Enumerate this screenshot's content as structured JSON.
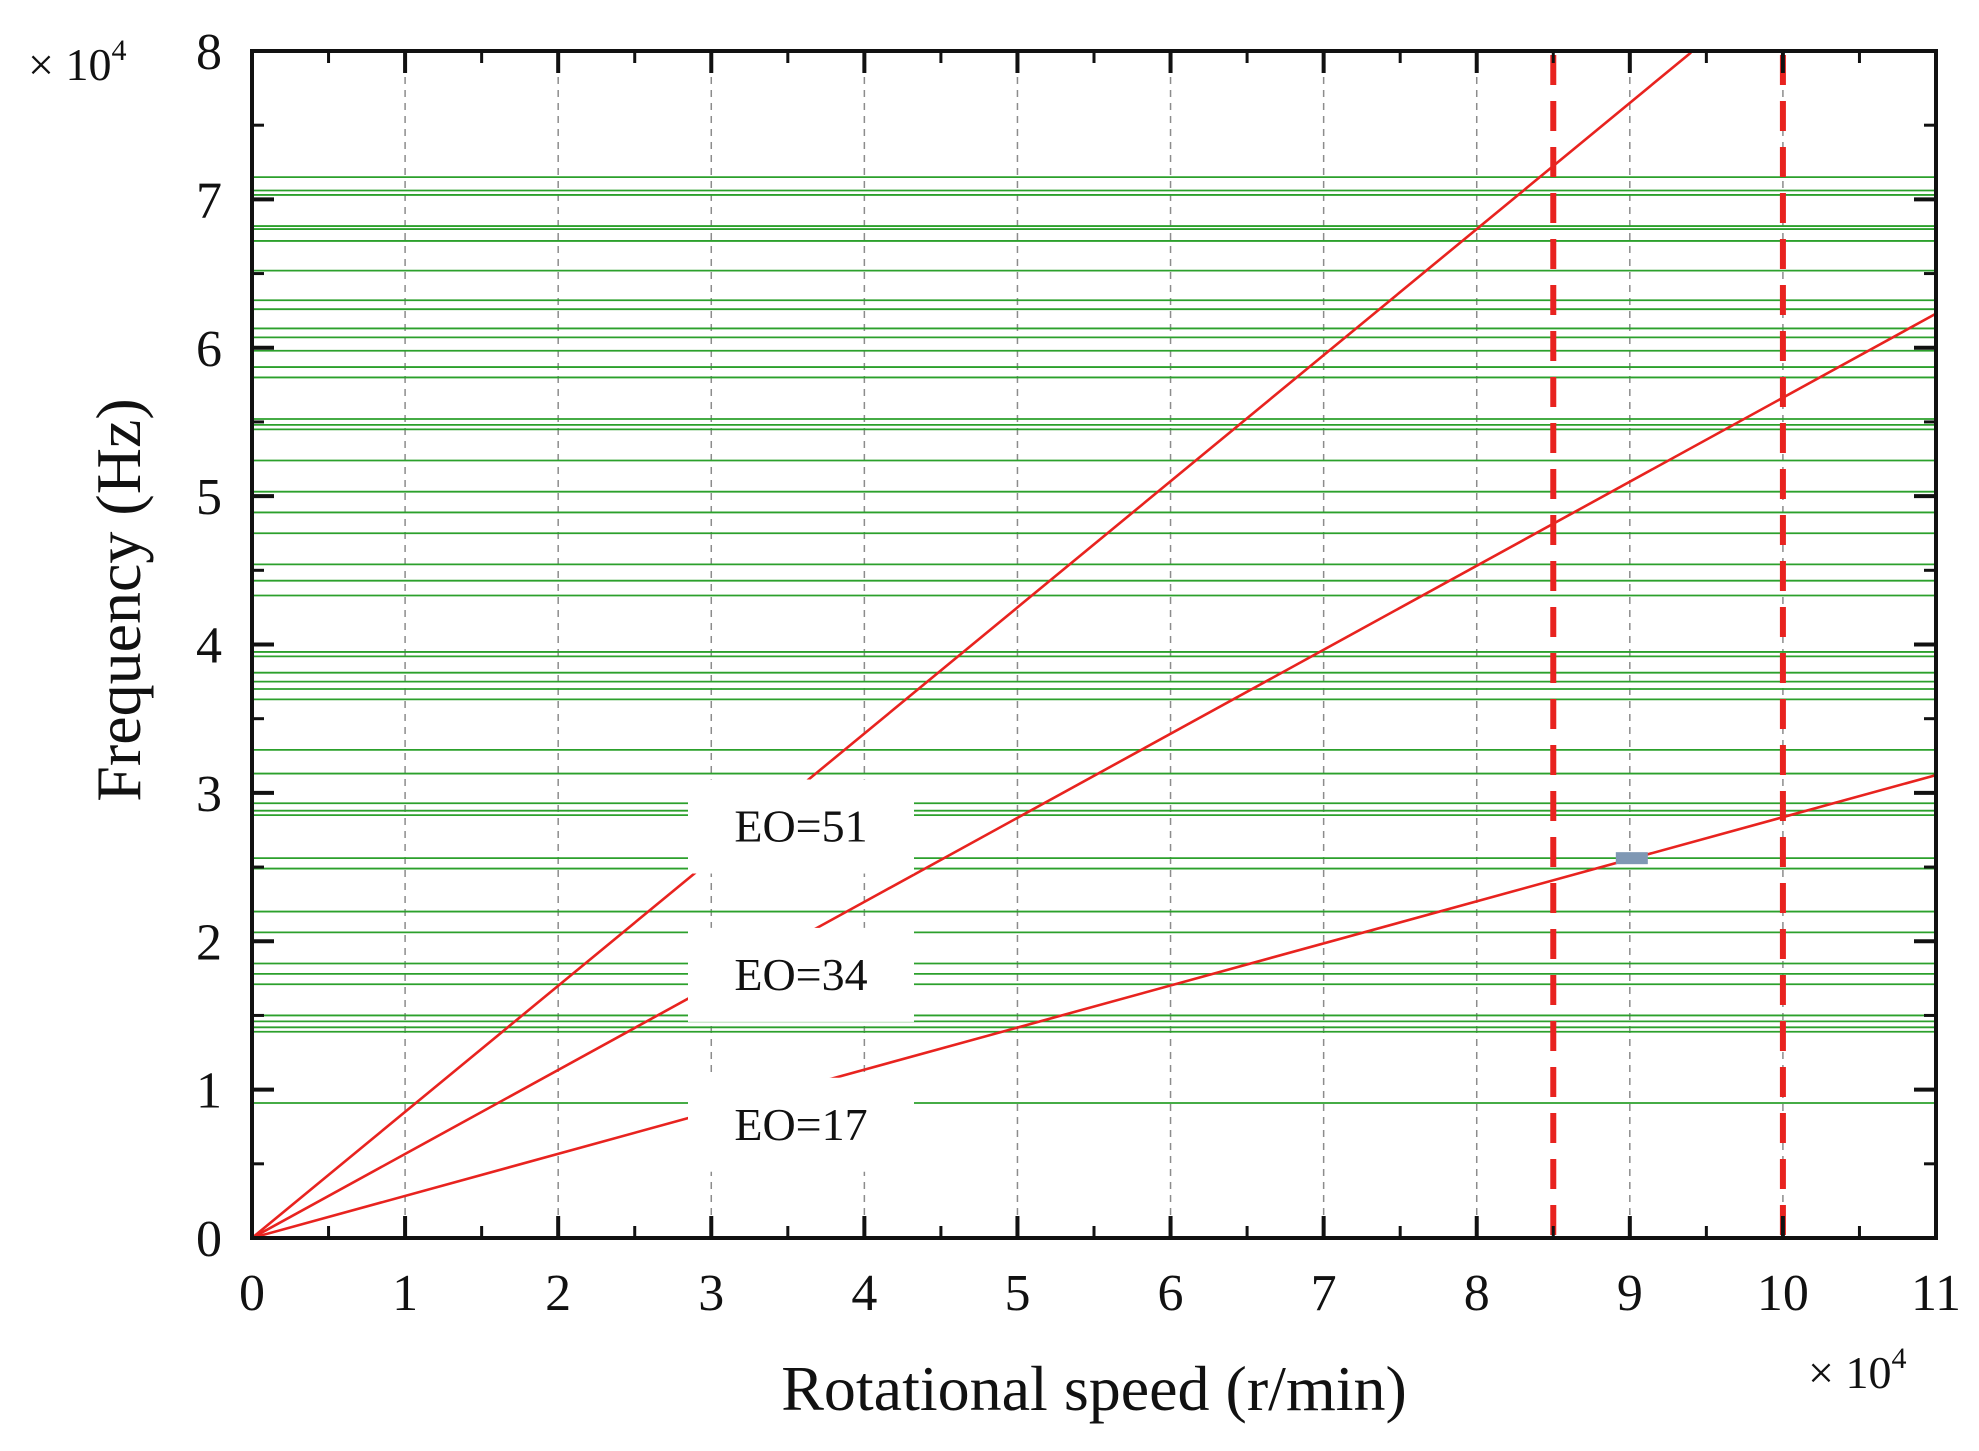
{
  "chart_data": {
    "type": "line",
    "title": "",
    "xlabel": "Rotational speed (r/min)",
    "ylabel": "Frequency (Hz)",
    "x_multiplier": "× 10",
    "y_multiplier": "× 10",
    "multiplier_exponent": "4",
    "xlim": [
      0,
      11
    ],
    "ylim": [
      0,
      8
    ],
    "x_ticks": [
      "0",
      "1",
      "2",
      "3",
      "4",
      "5",
      "6",
      "7",
      "8",
      "9",
      "10",
      "11"
    ],
    "y_ticks": [
      "0",
      "1",
      "2",
      "3",
      "4",
      "5",
      "6",
      "7",
      "8"
    ],
    "x_units_note": "x values in units of 10^4 r/min",
    "y_units_note": "y values in units of 10^4 Hz",
    "series": [
      {
        "name": "EO=51",
        "label": "EO=51",
        "color": "#e8231f",
        "x": [
          0,
          9.4
        ],
        "y": [
          0,
          7.99
        ]
      },
      {
        "name": "EO=34",
        "label": "EO=34",
        "color": "#e8231f",
        "x": [
          0,
          11
        ],
        "y": [
          0,
          6.23
        ]
      },
      {
        "name": "EO=17",
        "label": "EO=17",
        "color": "#e8231f",
        "x": [
          0,
          11
        ],
        "y": [
          0,
          3.12
        ]
      }
    ],
    "operating_range_lines": {
      "x": [
        8.5,
        10
      ],
      "color": "#e8231f",
      "style": "dashed"
    },
    "natural_frequencies": {
      "color": "#2ca02c",
      "y": [
        0.91,
        1.39,
        1.42,
        1.46,
        1.5,
        1.71,
        1.78,
        1.85,
        2.06,
        2.2,
        2.49,
        2.56,
        2.85,
        2.88,
        2.93,
        3.13,
        3.29,
        3.63,
        3.7,
        3.75,
        3.81,
        3.92,
        3.95,
        4.33,
        4.43,
        4.54,
        4.75,
        4.89,
        5.03,
        5.24,
        5.45,
        5.48,
        5.52,
        5.8,
        5.87,
        5.98,
        6.07,
        6.13,
        6.26,
        6.32,
        6.52,
        6.72,
        6.8,
        6.82,
        7.03,
        7.06,
        7.15
      ]
    },
    "marker": {
      "x": 9.0,
      "y": 2.56,
      "color": "#7f98b4"
    },
    "grid": {
      "x": true,
      "y": false,
      "style": "dashed"
    }
  }
}
